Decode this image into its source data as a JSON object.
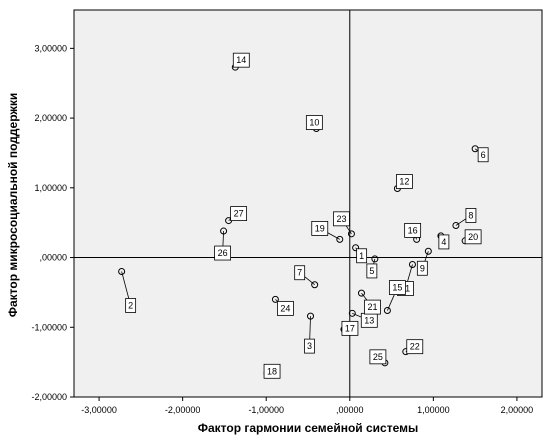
{
  "chart_data": {
    "type": "scatter",
    "xlabel": "Фактор гармонии семейной системы",
    "ylabel": "Фактор микросоциальной поддержки",
    "xlim": [
      -3.3,
      2.3
    ],
    "ylim": [
      -2.0,
      3.55
    ],
    "xticks": [
      -3,
      -2,
      -1,
      0,
      1,
      2
    ],
    "yticks": [
      -2,
      -1,
      0,
      1,
      2,
      3
    ],
    "xtick_labels": [
      "-3,00000",
      "-2,00000",
      "-1,00000",
      ",00000",
      "1,00000",
      "2,00000"
    ],
    "ytick_labels": [
      "-2,00000",
      "-1,00000",
      ",00000",
      "1,00000",
      "2,00000",
      "3,00000"
    ],
    "reference_lines": {
      "x": 0,
      "y": 0
    },
    "grid": false,
    "legend": "none",
    "colors": {
      "plot_bg": "#f0f0f0",
      "marker": "#000000",
      "line": "#000000"
    },
    "points": [
      {
        "label": "1",
        "x": 0.07,
        "y": 0.14
      },
      {
        "label": "2",
        "x": -2.73,
        "y": -0.2
      },
      {
        "label": "3",
        "x": -0.47,
        "y": -0.84
      },
      {
        "label": "4",
        "x": 1.09,
        "y": 0.31
      },
      {
        "label": "5",
        "x": 0.3,
        "y": -0.02
      },
      {
        "label": "6",
        "x": 1.5,
        "y": 1.56
      },
      {
        "label": "7",
        "x": -0.42,
        "y": -0.39
      },
      {
        "label": "8",
        "x": 1.27,
        "y": 0.46
      },
      {
        "label": "9",
        "x": 0.94,
        "y": 0.09
      },
      {
        "label": "10",
        "x": -0.4,
        "y": 1.85
      },
      {
        "label": "11",
        "x": 0.75,
        "y": -0.1
      },
      {
        "label": "12",
        "x": 0.57,
        "y": 0.99
      },
      {
        "label": "13",
        "x": 0.03,
        "y": -0.8
      },
      {
        "label": "14",
        "x": -1.37,
        "y": 2.73
      },
      {
        "label": "15",
        "x": 0.45,
        "y": -0.76
      },
      {
        "label": "16",
        "x": 0.8,
        "y": 0.26
      },
      {
        "label": "17",
        "x": -0.07,
        "y": -1.03
      },
      {
        "label": "18",
        "x": -0.99,
        "y": -1.66
      },
      {
        "label": "19",
        "x": -0.12,
        "y": 0.26
      },
      {
        "label": "20",
        "x": 1.38,
        "y": 0.24
      },
      {
        "label": "21",
        "x": 0.14,
        "y": -0.51
      },
      {
        "label": "22",
        "x": 0.67,
        "y": -1.35
      },
      {
        "label": "23",
        "x": 0.02,
        "y": 0.34
      },
      {
        "label": "24",
        "x": -0.89,
        "y": -0.6
      },
      {
        "label": "25",
        "x": 0.42,
        "y": -1.51
      },
      {
        "label": "26",
        "x": -1.51,
        "y": 0.38
      },
      {
        "label": "27",
        "x": -1.45,
        "y": 0.53
      }
    ]
  }
}
